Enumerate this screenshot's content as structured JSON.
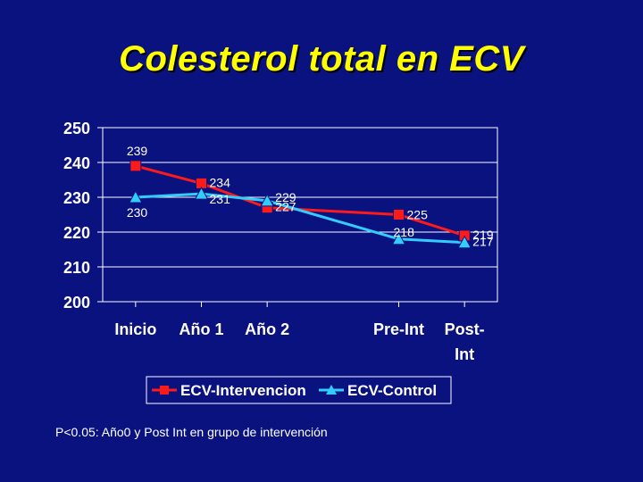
{
  "slide": {
    "title": "Colesterol total en ECV",
    "footnote": "P<0.05: Año0 y Post Int en grupo de intervención"
  },
  "colors": {
    "background": "#0a1280",
    "title": "#ffff00",
    "axis_text": "#ffffff",
    "series_intervencion": "#ff1a1a",
    "series_control": "#33ccff",
    "marker_outline": "#0a1280"
  },
  "chart_data": {
    "type": "line",
    "title": "",
    "xlabel": "",
    "ylabel": "",
    "categories": [
      "Inicio",
      "Año 1",
      "Año 2",
      "Pre-Int",
      "Post-Int"
    ],
    "category_lines": [
      [
        "Inicio"
      ],
      [
        "Año 1"
      ],
      [
        "Año 2"
      ],
      [
        "Pre-Int"
      ],
      [
        "Post-",
        "Int"
      ]
    ],
    "x_positions": [
      1,
      2,
      3,
      5,
      6
    ],
    "xlim": [
      0.5,
      6.5
    ],
    "ylim": [
      200,
      250
    ],
    "yticks": [
      200,
      210,
      220,
      230,
      240,
      250
    ],
    "grid": true,
    "legend_position": "bottom",
    "series": [
      {
        "name": "ECV-Intervencion",
        "marker": "square",
        "color": "#ff1a1a",
        "values": [
          239,
          234,
          227,
          225,
          219
        ],
        "label_side": "below"
      },
      {
        "name": "ECV-Control",
        "marker": "triangle",
        "color": "#33ccff",
        "values": [
          230,
          231,
          229,
          218,
          217
        ],
        "label_side": "above"
      }
    ],
    "data_labels": [
      {
        "text": "239",
        "x": 1,
        "series": 0
      },
      {
        "text": "230",
        "x": 1,
        "series": 1
      },
      {
        "text": "234",
        "x": 2,
        "series": 0
      },
      {
        "text": "231",
        "x": 2,
        "series": 1
      },
      {
        "text": "229",
        "x": 3,
        "series": 1
      },
      {
        "text": "227",
        "x": 3,
        "series": 0
      },
      {
        "text": "225",
        "x": 5,
        "series": 0
      },
      {
        "text": "218",
        "x": 5,
        "series": 1
      },
      {
        "text": "219",
        "x": 6,
        "series": 0
      },
      {
        "text": "217",
        "x": 6,
        "series": 1
      }
    ]
  }
}
